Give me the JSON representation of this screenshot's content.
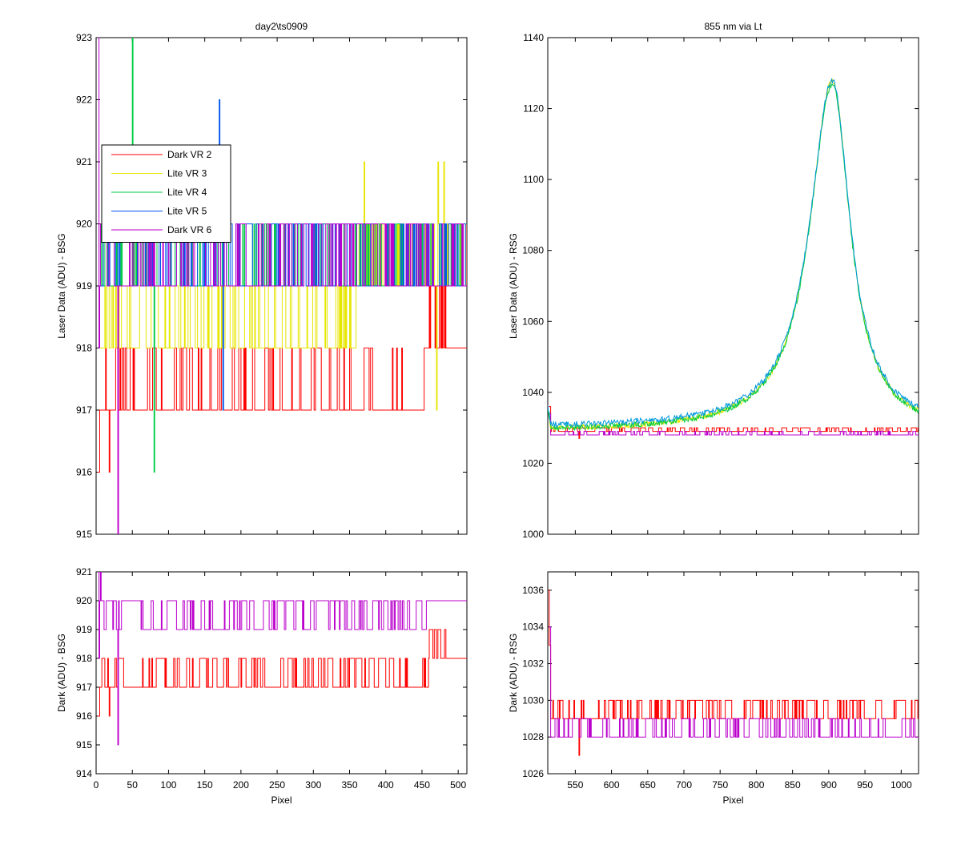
{
  "chart_data": [
    {
      "id": "top_left",
      "type": "line",
      "title": "day2\\ts0909",
      "xlabel": "",
      "ylabel": "Laser Data (ADU) - BSG",
      "xlim": [
        0,
        512
      ],
      "ylim": [
        915,
        923
      ],
      "xticks": [
        0,
        50,
        100,
        150,
        200,
        250,
        300,
        350,
        400,
        450,
        500
      ],
      "yticks": [
        915,
        916,
        917,
        918,
        919,
        920,
        921,
        922,
        923
      ],
      "show_xtick_labels": false,
      "legend": {
        "position": "upper-left",
        "entries": [
          "Dark VR 2",
          "Lite VR 3",
          "Lite VR 4",
          "Lite VR 5",
          "Dark VR 6"
        ]
      },
      "series": [
        {
          "name": "Dark VR 2",
          "color": "#ff0000",
          "pattern": "toggle",
          "low": 917,
          "high": 918,
          "p_high": 0.28,
          "x_range": [
            5,
            512
          ],
          "spikes": [
            [
              2,
              916
            ],
            [
              18,
              916
            ]
          ],
          "step_after": [
            [
              460,
              919,
              918,
              0.5
            ],
            [
              483,
              918,
              918,
              0
            ]
          ]
        },
        {
          "name": "Lite VR 3",
          "color": "#e6e600",
          "pattern": "toggle",
          "low": 918,
          "high": 919,
          "p_high": 0.55,
          "x_range": [
            5,
            512
          ],
          "spikes": [
            [
              370,
              921
            ],
            [
              472,
              921
            ],
            [
              480,
              921
            ],
            [
              470,
              917
            ]
          ],
          "step_after": [
            [
              360,
              919,
              920,
              0.5
            ]
          ]
        },
        {
          "name": "Lite VR 4",
          "color": "#00cc44",
          "pattern": "toggle",
          "low": 919,
          "high": 920,
          "p_high": 0.5,
          "x_range": [
            5,
            512
          ],
          "spikes": [
            [
              50,
              923
            ],
            [
              80,
              916
            ],
            [
              52,
              921
            ]
          ]
        },
        {
          "name": "Lite VR 5",
          "color": "#0055ee",
          "pattern": "toggle",
          "low": 919,
          "high": 920,
          "p_high": 0.5,
          "x_range": [
            5,
            512
          ],
          "spikes": [
            [
              170,
              922
            ],
            [
              175,
              917
            ]
          ]
        },
        {
          "name": "Dark VR 6",
          "color": "#bb00cc",
          "pattern": "toggle",
          "low": 919,
          "high": 920,
          "p_high": 0.45,
          "x_range": [
            5,
            512
          ],
          "spikes": [
            [
              2,
              923
            ],
            [
              4,
              918
            ],
            [
              30,
              915
            ]
          ]
        }
      ]
    },
    {
      "id": "top_right",
      "type": "line",
      "title": "855 nm via Lt",
      "xlabel": "",
      "ylabel": "Laser Data (ADU) - RSG",
      "xlim": [
        512,
        1024
      ],
      "ylim": [
        1000,
        1140
      ],
      "xticks": [
        550,
        600,
        650,
        700,
        750,
        800,
        850,
        900,
        950,
        1000
      ],
      "yticks": [
        1000,
        1020,
        1040,
        1060,
        1080,
        1100,
        1120,
        1140
      ],
      "show_xtick_labels": false,
      "series": [
        {
          "color": "#ff0000",
          "pattern": "toggle",
          "low": 1029,
          "high": 1030,
          "p_high": 0.4,
          "x_range": [
            516,
            1024
          ],
          "spikes": [
            [
              513,
              1036
            ],
            [
              555,
              1027
            ]
          ]
        },
        {
          "color": "#bb00cc",
          "pattern": "toggle",
          "low": 1028,
          "high": 1029,
          "p_high": 0.35,
          "x_range": [
            516,
            1024
          ],
          "spikes": [
            [
              513,
              1034
            ]
          ]
        },
        {
          "color": "#e6e600",
          "pattern": "peak",
          "base": 1029,
          "center": 905,
          "peak": 1128,
          "x_range": [
            512,
            1024
          ]
        },
        {
          "color": "#00cc44",
          "pattern": "peak",
          "base": 1029,
          "center": 905,
          "peak": 1127,
          "x_range": [
            512,
            1024
          ]
        },
        {
          "color": "#0099dd",
          "pattern": "peak",
          "base": 1030,
          "center": 905,
          "peak": 1128,
          "x_range": [
            512,
            1024
          ]
        }
      ]
    },
    {
      "id": "bottom_left",
      "type": "line",
      "title": "",
      "xlabel": "Pixel",
      "ylabel": "Dark (ADU) - BSG",
      "xlim": [
        0,
        512
      ],
      "ylim": [
        914,
        921
      ],
      "xticks": [
        0,
        50,
        100,
        150,
        200,
        250,
        300,
        350,
        400,
        450,
        500
      ],
      "yticks": [
        914,
        915,
        916,
        917,
        918,
        919,
        920,
        921
      ],
      "show_xtick_labels": true,
      "series": [
        {
          "color": "#ff0000",
          "pattern": "toggle",
          "low": 917,
          "high": 918,
          "p_high": 0.3,
          "x_range": [
            5,
            512
          ],
          "spikes": [
            [
              2,
              916
            ],
            [
              18,
              916
            ]
          ],
          "step_after": [
            [
              460,
              919,
              918,
              0.5
            ],
            [
              483,
              918,
              918,
              0
            ]
          ]
        },
        {
          "color": "#bb00cc",
          "pattern": "toggle",
          "low": 919,
          "high": 920,
          "p_high": 0.5,
          "x_range": [
            5,
            512
          ],
          "spikes": [
            [
              2,
              921
            ],
            [
              6,
              921
            ],
            [
              30,
              915
            ],
            [
              4,
              918
            ]
          ],
          "step_after": [
            [
              465,
              920,
              920,
              0
            ]
          ]
        }
      ]
    },
    {
      "id": "bottom_right",
      "type": "line",
      "title": "",
      "xlabel": "Pixel",
      "ylabel": "Dark (ADU) - RSG",
      "xlim": [
        512,
        1024
      ],
      "ylim": [
        1026,
        1037
      ],
      "xticks": [
        550,
        600,
        650,
        700,
        750,
        800,
        850,
        900,
        950,
        1000
      ],
      "yticks": [
        1026,
        1028,
        1030,
        1032,
        1034,
        1036
      ],
      "show_xtick_labels": true,
      "series": [
        {
          "color": "#ff0000",
          "pattern": "toggle",
          "low": 1029,
          "high": 1030,
          "p_high": 0.4,
          "x_range": [
            516,
            1024
          ],
          "spikes": [
            [
              513,
              1036
            ],
            [
              514,
              1033
            ],
            [
              555,
              1027
            ]
          ]
        },
        {
          "color": "#bb00cc",
          "pattern": "toggle",
          "low": 1028,
          "high": 1029,
          "p_high": 0.35,
          "x_range": [
            516,
            1024
          ],
          "spikes": [
            [
              513,
              1034
            ]
          ]
        }
      ]
    }
  ]
}
